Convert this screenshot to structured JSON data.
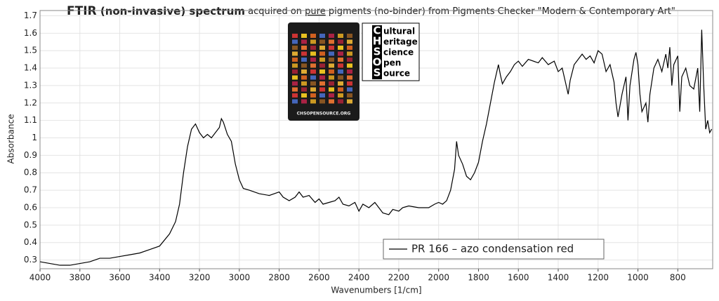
{
  "chart_data": {
    "type": "line",
    "title": [
      "FTIR",
      " (non-invasive) spectrum",
      " acquired on ",
      "pure",
      " pigments (no-binder) from Pigments Checker \"Modern & Contemporary Art\""
    ],
    "xlabel": "Wavenumbers [1/cm]",
    "ylabel": "Absorbance",
    "xlim": [
      4000,
      625
    ],
    "ylim": [
      0.25,
      1.73
    ],
    "xticks": [
      4000,
      3800,
      3600,
      3400,
      3200,
      3000,
      2800,
      2600,
      2400,
      2200,
      2000,
      1800,
      1600,
      1400,
      1200,
      1000,
      800
    ],
    "yticks": [
      0.3,
      0.4,
      0.5,
      0.6,
      0.7,
      0.8,
      0.9,
      1,
      1.1,
      1.2,
      1.3,
      1.4,
      1.5,
      1.6,
      1.7
    ],
    "grid": true,
    "legend": "bottom-right",
    "logo": {
      "letters": [
        "C",
        "H",
        "S",
        "O",
        "S"
      ],
      "rest": [
        "ultural",
        "eritage",
        "cience",
        "pen",
        "ource"
      ],
      "url": "CHSOPENSOURCE.ORG"
    },
    "x": [
      4000,
      3950,
      3900,
      3850,
      3800,
      3750,
      3700,
      3650,
      3600,
      3550,
      3500,
      3450,
      3400,
      3350,
      3320,
      3300,
      3280,
      3260,
      3240,
      3220,
      3200,
      3180,
      3160,
      3140,
      3120,
      3100,
      3090,
      3080,
      3060,
      3040,
      3020,
      3000,
      2980,
      2950,
      2900,
      2850,
      2800,
      2780,
      2750,
      2720,
      2700,
      2680,
      2650,
      2620,
      2600,
      2580,
      2550,
      2520,
      2500,
      2480,
      2450,
      2420,
      2400,
      2380,
      2350,
      2320,
      2300,
      2280,
      2250,
      2230,
      2200,
      2180,
      2150,
      2100,
      2050,
      2020,
      2000,
      1980,
      1960,
      1940,
      1920,
      1910,
      1900,
      1880,
      1860,
      1840,
      1820,
      1800,
      1780,
      1760,
      1740,
      1720,
      1700,
      1690,
      1680,
      1660,
      1640,
      1620,
      1600,
      1580,
      1550,
      1500,
      1480,
      1450,
      1420,
      1400,
      1380,
      1360,
      1350,
      1340,
      1320,
      1300,
      1280,
      1260,
      1240,
      1220,
      1200,
      1180,
      1160,
      1140,
      1120,
      1110,
      1100,
      1080,
      1060,
      1050,
      1040,
      1020,
      1010,
      1000,
      990,
      980,
      960,
      950,
      940,
      920,
      900,
      880,
      860,
      850,
      840,
      830,
      820,
      800,
      790,
      780,
      760,
      740,
      720,
      700,
      690,
      680,
      670,
      660,
      650,
      640,
      630
    ],
    "series": [
      {
        "name": "PR 166 – azo condensation red",
        "color": "#000000",
        "values": [
          0.29,
          0.28,
          0.27,
          0.27,
          0.28,
          0.29,
          0.31,
          0.31,
          0.32,
          0.33,
          0.34,
          0.36,
          0.38,
          0.45,
          0.52,
          0.62,
          0.8,
          0.95,
          1.05,
          1.08,
          1.03,
          1.0,
          1.02,
          1.0,
          1.03,
          1.06,
          1.11,
          1.09,
          1.02,
          0.98,
          0.85,
          0.76,
          0.71,
          0.7,
          0.68,
          0.67,
          0.69,
          0.66,
          0.64,
          0.66,
          0.69,
          0.66,
          0.67,
          0.63,
          0.65,
          0.62,
          0.63,
          0.64,
          0.66,
          0.62,
          0.61,
          0.63,
          0.58,
          0.62,
          0.6,
          0.63,
          0.6,
          0.57,
          0.56,
          0.59,
          0.58,
          0.6,
          0.61,
          0.6,
          0.6,
          0.62,
          0.63,
          0.62,
          0.64,
          0.7,
          0.82,
          0.98,
          0.9,
          0.85,
          0.78,
          0.76,
          0.8,
          0.86,
          0.98,
          1.08,
          1.2,
          1.32,
          1.42,
          1.36,
          1.31,
          1.35,
          1.38,
          1.42,
          1.44,
          1.41,
          1.45,
          1.43,
          1.46,
          1.42,
          1.44,
          1.38,
          1.4,
          1.3,
          1.25,
          1.33,
          1.42,
          1.45,
          1.48,
          1.45,
          1.47,
          1.43,
          1.5,
          1.48,
          1.38,
          1.42,
          1.32,
          1.2,
          1.12,
          1.25,
          1.35,
          1.1,
          1.3,
          1.45,
          1.49,
          1.42,
          1.25,
          1.15,
          1.2,
          1.09,
          1.25,
          1.4,
          1.45,
          1.38,
          1.48,
          1.4,
          1.52,
          1.3,
          1.42,
          1.47,
          1.15,
          1.35,
          1.4,
          1.3,
          1.28,
          1.4,
          1.15,
          1.62,
          1.3,
          1.05,
          1.1,
          1.03,
          1.05
        ]
      }
    ]
  }
}
